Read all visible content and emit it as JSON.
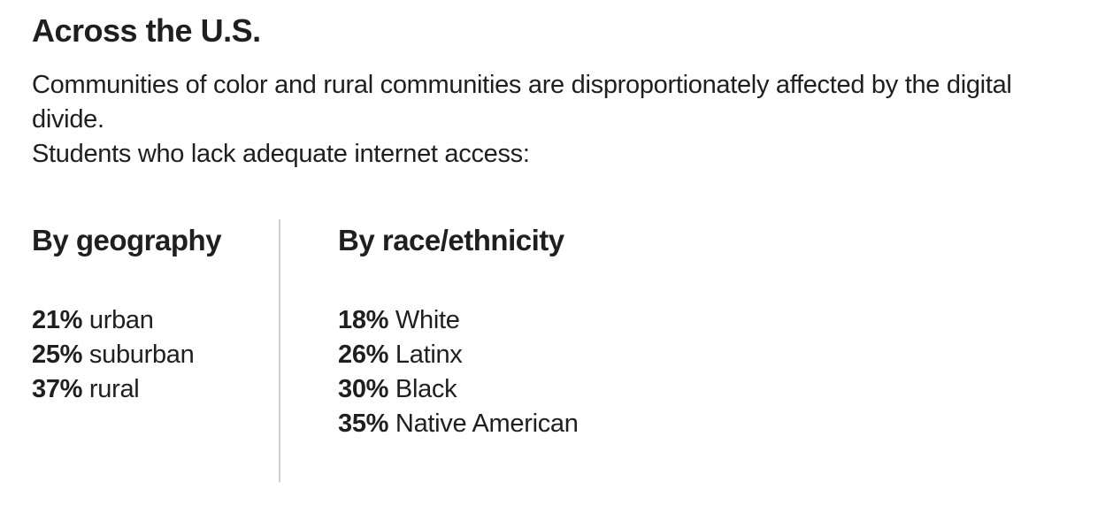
{
  "title": "Across the U.S.",
  "intro": {
    "line1": "Communities of color and rural communities are disproportionately affected by the digital divide.",
    "line2": "Students who lack adequate internet access:"
  },
  "geography": {
    "heading": "By geography",
    "items": [
      {
        "pct": "21%",
        "label": "urban"
      },
      {
        "pct": "25%",
        "label": "suburban"
      },
      {
        "pct": "37%",
        "label": "rural"
      }
    ]
  },
  "race": {
    "heading": "By race/ethnicity",
    "items": [
      {
        "pct": "18%",
        "label": "White"
      },
      {
        "pct": "26%",
        "label": "Latinx"
      },
      {
        "pct": "30%",
        "label": "Black"
      },
      {
        "pct": "35%",
        "label": "Native American"
      }
    ]
  }
}
